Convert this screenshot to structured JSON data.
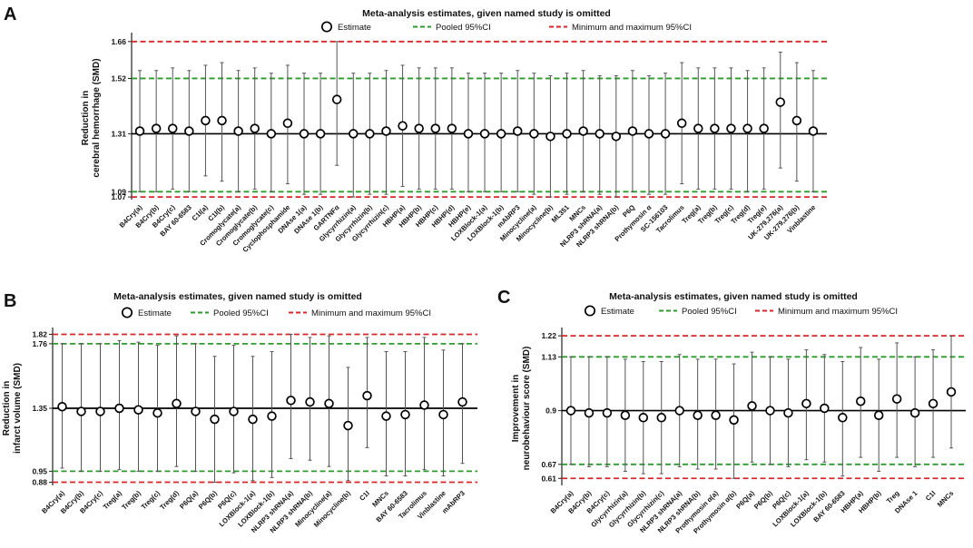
{
  "colors": {
    "pooled": "#2e9b2e",
    "minmax": "#d9262a",
    "estimate": "#000000",
    "ci": "#555555",
    "text": "#111111"
  },
  "legend": {
    "estimate": "Estimate",
    "pooled": "Pooled 95%CI",
    "minmax": "Minimum and maximum 95%CI"
  },
  "chart_data": [
    {
      "id": "A",
      "panel_label": "A",
      "type": "scatter",
      "title": "Meta-analysis estimates, given named study is omitted",
      "ylabel_lines": [
        "Reduction in",
        "cerebral hemorrhage (SMD)"
      ],
      "ylim": [
        1.06,
        1.68
      ],
      "yticks": [
        "1.66",
        "1.52",
        "1.31",
        "1.09",
        "1.07"
      ],
      "center": 1.31,
      "pooled_ci": [
        1.09,
        1.52
      ],
      "minmax_ci": [
        1.07,
        1.66
      ],
      "categories": [
        "B4Cry(a)",
        "B4Cry(b)",
        "B4Cry(c)",
        "BAY 60-6583",
        "C1I(a)",
        "C1I(b)",
        "Cromoglycate(a)",
        "Cromoglycate(b)",
        "Cromoglycate(c)",
        "Cyclophosphamide",
        "DNAse 1(a)",
        "DNAse 1(b)",
        "GARTNFα",
        "Glycyrrhizin(a)",
        "Glycyrrhizin(b)",
        "Glycyrrhizin(c)",
        "HBHP(a)",
        "HBHP(b)",
        "HBHP(c)",
        "HBHP(d)",
        "HBHP(e)",
        "LOXBlock-1(a)",
        "LOXBlock-1(b)",
        "mAbRP3",
        "Minocycline(a)",
        "Minocycline(b)",
        "ML351",
        "MNCs",
        "NLRP3 shRNA(a)",
        "NLRP3 shRNA(b)",
        "P6Q",
        "Prothymosin α",
        "SC-156103",
        "Tacrolimus",
        "Treg(a)",
        "Treg(b)",
        "Treg(c)",
        "Treg(d)",
        "Treg(e)",
        "UK-279,276(a)",
        "UK-279,276(b)",
        "Vinblastine"
      ],
      "estimates": [
        1.32,
        1.33,
        1.33,
        1.32,
        1.36,
        1.36,
        1.32,
        1.33,
        1.31,
        1.35,
        1.31,
        1.31,
        1.44,
        1.31,
        1.31,
        1.32,
        1.34,
        1.33,
        1.33,
        1.33,
        1.31,
        1.31,
        1.31,
        1.32,
        1.31,
        1.3,
        1.31,
        1.32,
        1.31,
        1.3,
        1.32,
        1.31,
        1.31,
        1.35,
        1.33,
        1.33,
        1.33,
        1.33,
        1.33,
        1.43,
        1.36,
        1.32
      ],
      "ci_low": [
        1.09,
        1.09,
        1.1,
        1.09,
        1.15,
        1.13,
        1.09,
        1.1,
        1.09,
        1.12,
        1.08,
        1.08,
        1.19,
        1.07,
        1.08,
        1.08,
        1.11,
        1.1,
        1.1,
        1.1,
        1.09,
        1.09,
        1.09,
        1.09,
        1.08,
        1.07,
        1.08,
        1.09,
        1.08,
        1.07,
        1.09,
        1.08,
        1.08,
        1.12,
        1.1,
        1.1,
        1.1,
        1.09,
        1.1,
        1.18,
        1.13,
        1.09
      ],
      "ci_high": [
        1.55,
        1.55,
        1.56,
        1.55,
        1.57,
        1.58,
        1.55,
        1.56,
        1.54,
        1.57,
        1.54,
        1.54,
        1.66,
        1.54,
        1.54,
        1.55,
        1.57,
        1.56,
        1.56,
        1.56,
        1.54,
        1.54,
        1.54,
        1.55,
        1.54,
        1.53,
        1.54,
        1.55,
        1.53,
        1.53,
        1.55,
        1.53,
        1.54,
        1.58,
        1.56,
        1.56,
        1.56,
        1.55,
        1.56,
        1.62,
        1.58,
        1.55
      ]
    },
    {
      "id": "B",
      "panel_label": "B",
      "type": "scatter",
      "title": "Meta-analysis estimates, given named study is omitted",
      "ylabel_lines": [
        "Reduction in",
        "infarct volume (SMD)"
      ],
      "ylim": [
        0.86,
        1.84
      ],
      "yticks": [
        "1.82",
        "1.76",
        "1.35",
        "0.95",
        "0.88"
      ],
      "center": 1.35,
      "pooled_ci": [
        0.95,
        1.76
      ],
      "minmax_ci": [
        0.88,
        1.82
      ],
      "categories": [
        "B4Cry(a)",
        "B4Cry(b)",
        "B4Cry(c)",
        "Treg(a)",
        "Treg(b)",
        "Treg(c)",
        "Treg(d)",
        "P6Q(a)",
        "P6Q(b)",
        "P6Q(c)",
        "LOXBlock-1(a)",
        "LOXBlock-1(b)",
        "NLRP3 shRNA(a)",
        "NLRP3 shRNA(b)",
        "Minocycline(a)",
        "Minocycline(b)",
        "C1I",
        "MNCs",
        "BAY 60-6583",
        "Tacrolimus",
        "Vinblastine",
        "mAbRP3"
      ],
      "estimates": [
        1.36,
        1.33,
        1.33,
        1.35,
        1.34,
        1.32,
        1.38,
        1.33,
        1.28,
        1.33,
        1.28,
        1.3,
        1.4,
        1.39,
        1.38,
        1.24,
        1.43,
        1.3,
        1.31,
        1.37,
        1.31,
        1.39
      ],
      "ci_low": [
        0.97,
        0.95,
        0.95,
        0.96,
        0.95,
        0.95,
        0.98,
        0.95,
        0.88,
        0.94,
        0.89,
        0.91,
        1.03,
        1.02,
        0.98,
        0.89,
        1.1,
        0.92,
        0.92,
        0.96,
        0.92,
        1.0
      ],
      "ci_high": [
        1.76,
        1.76,
        1.76,
        1.78,
        1.77,
        1.75,
        1.81,
        1.76,
        1.68,
        1.75,
        1.68,
        1.71,
        1.82,
        1.8,
        1.81,
        1.61,
        1.8,
        1.71,
        1.71,
        1.8,
        1.72,
        1.76
      ]
    },
    {
      "id": "C",
      "panel_label": "C",
      "type": "scatter",
      "title": "Meta-analysis estimates, given named study is omitted",
      "ylabel_lines": [
        "Improvement in",
        "neurobehaviour score (SMD)"
      ],
      "ylim": [
        0.58,
        1.24
      ],
      "yticks": [
        "1.22",
        "1.13",
        "0.9",
        "0.67",
        "0.61"
      ],
      "center": 0.9,
      "pooled_ci": [
        0.67,
        1.13
      ],
      "minmax_ci": [
        0.61,
        1.22
      ],
      "categories": [
        "B4Cry(a)",
        "B4Cry(b)",
        "B4Cry(c)",
        "Glycyrrhizin(a)",
        "Glycyrrhizin(b)",
        "Glycyrrhizin(c)",
        "NLRP3 shRNA(a)",
        "NLRP3 shRNA(b)",
        "Prothymosin α(a)",
        "Prothymosin α(b)",
        "P6Q(a)",
        "P6Q(b)",
        "P6Q(c)",
        "LOXBlock-1(a)",
        "LOXBlock-1(b)",
        "BAY 60-6583",
        "HBHP(a)",
        "HBHP(b)",
        "Treg",
        "DNAse 1",
        "C1I",
        "MNCs"
      ],
      "estimates": [
        0.9,
        0.89,
        0.89,
        0.88,
        0.87,
        0.87,
        0.9,
        0.88,
        0.88,
        0.86,
        0.92,
        0.9,
        0.89,
        0.93,
        0.91,
        0.87,
        0.94,
        0.88,
        0.95,
        0.89,
        0.93,
        0.98
      ],
      "ci_low": [
        0.67,
        0.66,
        0.66,
        0.64,
        0.63,
        0.63,
        0.66,
        0.65,
        0.65,
        0.61,
        0.68,
        0.67,
        0.66,
        0.69,
        0.68,
        0.62,
        0.7,
        0.64,
        0.7,
        0.66,
        0.7,
        0.74
      ],
      "ci_high": [
        1.13,
        1.13,
        1.13,
        1.12,
        1.11,
        1.11,
        1.14,
        1.12,
        1.12,
        1.1,
        1.15,
        1.13,
        1.12,
        1.16,
        1.14,
        1.11,
        1.17,
        1.12,
        1.19,
        1.13,
        1.16,
        1.22
      ]
    }
  ]
}
